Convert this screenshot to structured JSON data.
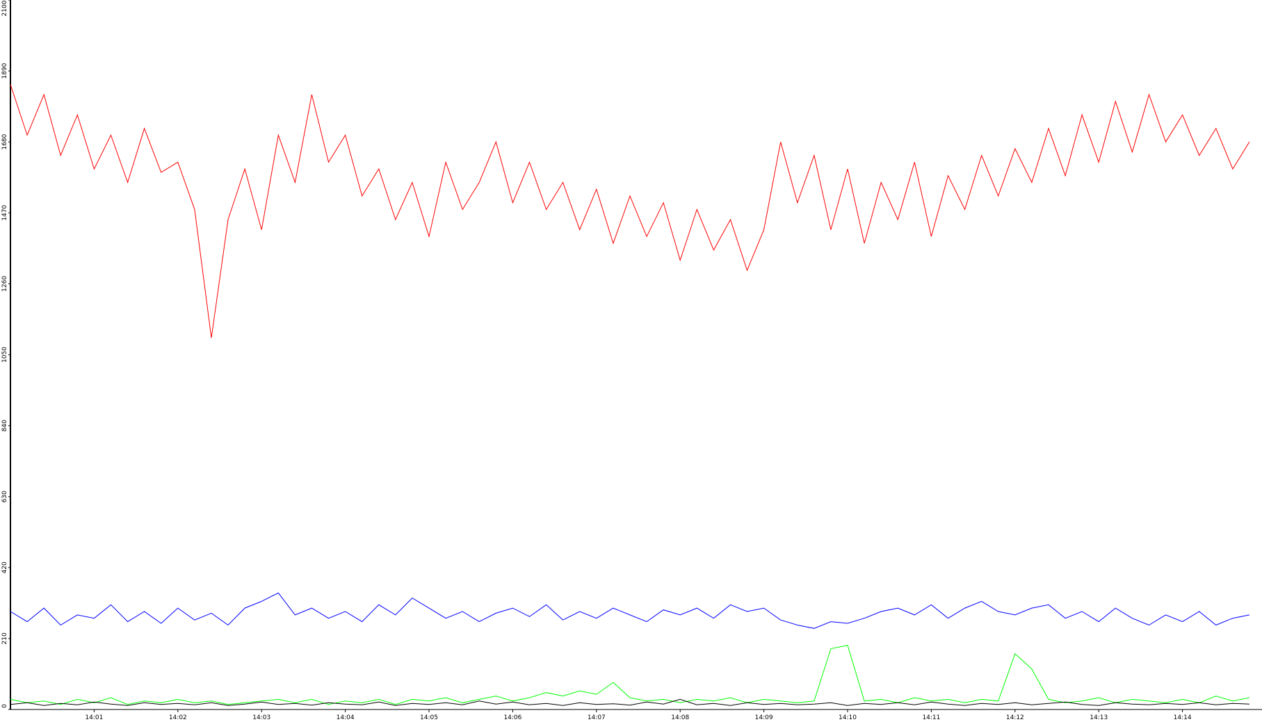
{
  "chart_data": {
    "type": "line",
    "x": [
      0,
      0.2,
      0.4,
      0.6,
      0.8,
      1,
      1.2,
      1.4,
      1.6,
      1.8,
      2,
      2.2,
      2.4,
      2.6,
      2.8,
      3,
      3.2,
      3.4,
      3.6,
      3.8,
      4,
      4.2,
      4.4,
      4.6,
      4.8,
      5,
      5.2,
      5.4,
      5.6,
      5.8,
      6,
      6.2,
      6.4,
      6.6,
      6.8,
      7,
      7.2,
      7.4,
      7.6,
      7.8,
      8,
      8.2,
      8.4,
      8.6,
      8.8,
      9,
      9.2,
      9.4,
      9.6,
      9.8,
      10,
      10.2,
      10.4,
      10.6,
      10.8,
      11,
      11.2,
      11.4,
      11.6,
      11.8,
      12,
      12.2,
      12.4,
      12.6,
      12.8,
      13,
      13.2,
      13.4,
      13.6,
      13.8,
      14,
      14.2,
      14.4,
      14.6,
      14.8
    ],
    "series": [
      {
        "color": "#ff0000",
        "values": [
          1850,
          1700,
          1820,
          1640,
          1760,
          1600,
          1700,
          1560,
          1720,
          1590,
          1620,
          1480,
          1100,
          1450,
          1600,
          1420,
          1700,
          1560,
          1820,
          1620,
          1700,
          1520,
          1600,
          1450,
          1560,
          1400,
          1620,
          1480,
          1560,
          1680,
          1500,
          1620,
          1480,
          1560,
          1420,
          1540,
          1380,
          1520,
          1400,
          1500,
          1330,
          1480,
          1360,
          1450,
          1300,
          1420,
          1680,
          1500,
          1640,
          1420,
          1600,
          1380,
          1560,
          1450,
          1620,
          1400,
          1580,
          1480,
          1640,
          1520,
          1660,
          1560,
          1720,
          1580,
          1760,
          1620,
          1800,
          1650,
          1820,
          1680,
          1760,
          1640,
          1720,
          1600,
          1680
        ]
      },
      {
        "color": "#0000ff",
        "values": [
          290,
          260,
          300,
          250,
          280,
          270,
          310,
          260,
          290,
          255,
          300,
          265,
          285,
          250,
          300,
          320,
          345,
          280,
          300,
          270,
          290,
          260,
          310,
          280,
          330,
          300,
          270,
          290,
          260,
          285,
          300,
          275,
          310,
          265,
          290,
          270,
          300,
          280,
          260,
          295,
          280,
          300,
          270,
          310,
          290,
          300,
          265,
          250,
          240,
          260,
          255,
          270,
          290,
          300,
          280,
          310,
          270,
          300,
          320,
          290,
          280,
          300,
          310,
          270,
          290,
          260,
          300,
          270,
          250,
          280,
          260,
          290,
          250,
          270,
          280
        ]
      },
      {
        "color": "#00ff00",
        "values": [
          30,
          20,
          25,
          15,
          30,
          20,
          35,
          15,
          25,
          20,
          30,
          20,
          25,
          15,
          20,
          25,
          30,
          20,
          30,
          15,
          25,
          20,
          30,
          15,
          30,
          25,
          35,
          20,
          30,
          40,
          25,
          35,
          50,
          40,
          55,
          45,
          80,
          35,
          25,
          30,
          20,
          30,
          25,
          35,
          20,
          30,
          25,
          20,
          25,
          180,
          190,
          25,
          30,
          20,
          35,
          25,
          30,
          20,
          30,
          25,
          165,
          120,
          30,
          20,
          25,
          35,
          20,
          30,
          25,
          20,
          30,
          20,
          40,
          25,
          35
        ]
      },
      {
        "color": "#000000",
        "values": [
          15,
          20,
          12,
          18,
          14,
          22,
          16,
          12,
          20,
          15,
          18,
          14,
          20,
          12,
          16,
          22,
          15,
          18,
          13,
          20,
          16,
          14,
          22,
          12,
          18,
          15,
          20,
          14,
          25,
          16,
          22,
          14,
          18,
          12,
          20,
          15,
          17,
          13,
          22,
          16,
          30,
          14,
          18,
          12,
          20,
          15,
          18,
          14,
          16,
          20,
          12,
          18,
          15,
          20,
          14,
          22,
          16,
          12,
          18,
          15,
          20,
          14,
          18,
          22,
          15,
          12,
          20,
          16,
          14,
          18,
          15,
          20,
          14,
          18,
          16
        ]
      }
    ],
    "xlim": [
      0,
      14.95
    ],
    "xticks": [
      {
        "value": 1,
        "label": "14:01"
      },
      {
        "value": 2,
        "label": "14:02"
      },
      {
        "value": 3,
        "label": "14:03"
      },
      {
        "value": 4,
        "label": "14:04"
      },
      {
        "value": 5,
        "label": "14:05"
      },
      {
        "value": 6,
        "label": "14:06"
      },
      {
        "value": 7,
        "label": "14:07"
      },
      {
        "value": 8,
        "label": "14:08"
      },
      {
        "value": 9,
        "label": "14:09"
      },
      {
        "value": 10,
        "label": "14:10"
      },
      {
        "value": 11,
        "label": "14:11"
      },
      {
        "value": 12,
        "label": "14:12"
      },
      {
        "value": 13,
        "label": "14:13"
      },
      {
        "value": 14,
        "label": "14:14"
      }
    ],
    "ylim": [
      0,
      2100
    ],
    "yticks": [
      0,
      210,
      420,
      630,
      840,
      1050,
      1260,
      1470,
      1680,
      1890,
      2100
    ]
  }
}
